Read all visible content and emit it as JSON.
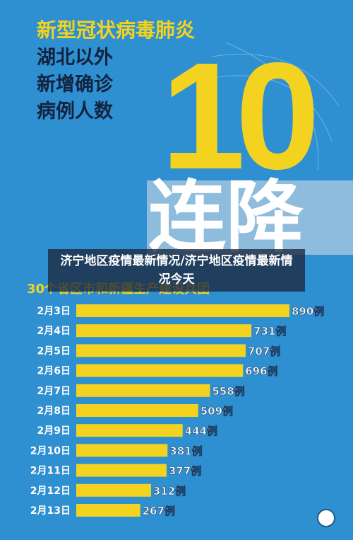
{
  "header": {
    "title": "新型冠状病毒肺炎",
    "subtitle_lines": [
      "湖北以外",
      "新增确诊",
      "病例人数"
    ],
    "big_number": "10",
    "big_text": "连降",
    "caption": "济宁地区疫情最新情况/济宁地区疫情最新情况今天"
  },
  "chart_data": {
    "type": "bar",
    "orientation": "horizontal",
    "title": "30个省区市和新疆生产建设兵团",
    "categories": [
      "2月3日",
      "2月4日",
      "2月5日",
      "2月6日",
      "2月7日",
      "2月8日",
      "2月9日",
      "2月10日",
      "2月11日",
      "2月12日",
      "2月13日"
    ],
    "values": [
      890,
      731,
      707,
      696,
      558,
      509,
      444,
      381,
      377,
      312,
      267
    ],
    "value_labels": [
      "890例",
      "731例",
      "707例",
      "696例",
      "558例",
      "509例",
      "444例",
      "381例",
      "377例",
      "312例",
      "267例"
    ],
    "color": "#f3d320"
  }
}
